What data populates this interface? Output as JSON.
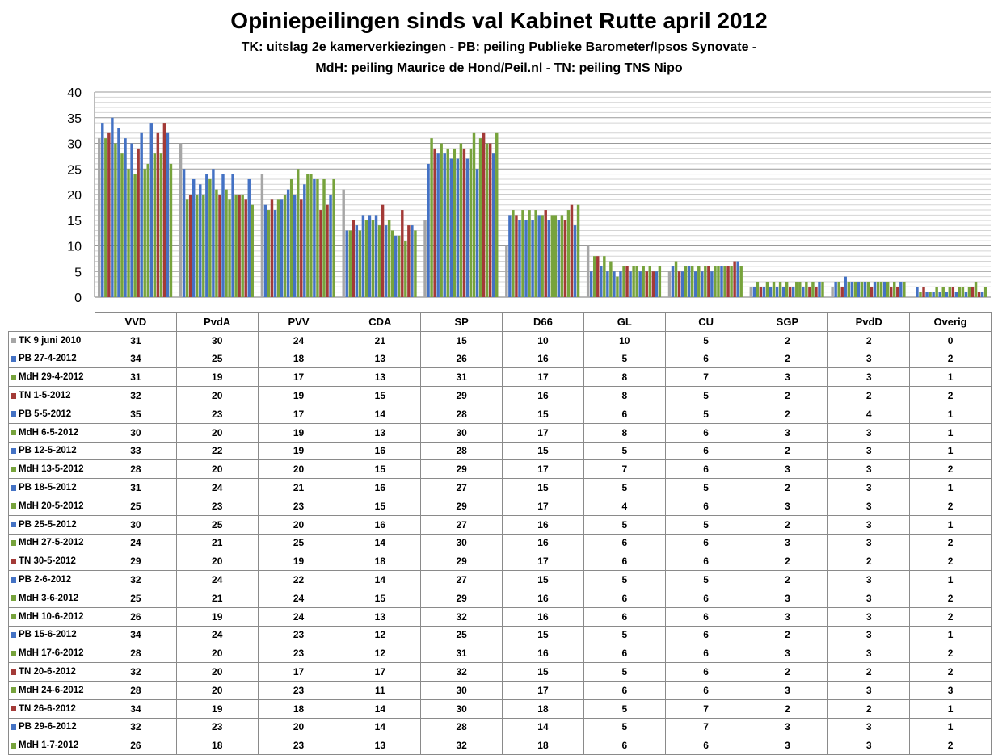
{
  "title": "Opiniepeilingen sinds val Kabinet Rutte april 2012",
  "subtitle_line1": "TK: uitslag 2e kamerverkiezingen - PB: peiling Publieke Barometer/Ipsos Synovate -",
  "subtitle_line2": "MdH: peiling Maurice de Hond/Peil.nl - TN: peiling TNS Nipo",
  "colors": {
    "TK": "#a6a6a6",
    "PB": "#4472c4",
    "MdH": "#77a33c",
    "TN": "#a33a37"
  },
  "chart_data": {
    "type": "bar",
    "categories": [
      "VVD",
      "PvdA",
      "PVV",
      "CDA",
      "SP",
      "D66",
      "GL",
      "CU",
      "SGP",
      "PvdD",
      "Overig"
    ],
    "ylim": [
      0,
      40
    ],
    "yticks": [
      "0",
      "5",
      "10",
      "15",
      "20",
      "25",
      "30",
      "35",
      "40"
    ],
    "grid": true,
    "legend": "data table below the chart",
    "series": [
      {
        "name": "TK 9 juni 2010",
        "group": "TK",
        "values": [
          31,
          30,
          24,
          21,
          15,
          10,
          10,
          5,
          2,
          2,
          0
        ]
      },
      {
        "name": "PB 27-4-2012",
        "group": "PB",
        "values": [
          34,
          25,
          18,
          13,
          26,
          16,
          5,
          6,
          2,
          3,
          2
        ]
      },
      {
        "name": "MdH 29-4-2012",
        "group": "MdH",
        "values": [
          31,
          19,
          17,
          13,
          31,
          17,
          8,
          7,
          3,
          3,
          1
        ]
      },
      {
        "name": "TN 1-5-2012",
        "group": "TN",
        "values": [
          32,
          20,
          19,
          15,
          29,
          16,
          8,
          5,
          2,
          2,
          2
        ]
      },
      {
        "name": "PB 5-5-2012",
        "group": "PB",
        "values": [
          35,
          23,
          17,
          14,
          28,
          15,
          6,
          5,
          2,
          4,
          1
        ]
      },
      {
        "name": "MdH 6-5-2012",
        "group": "MdH",
        "values": [
          30,
          20,
          19,
          13,
          30,
          17,
          8,
          6,
          3,
          3,
          1
        ]
      },
      {
        "name": "PB 12-5-2012",
        "group": "PB",
        "values": [
          33,
          22,
          19,
          16,
          28,
          15,
          5,
          6,
          2,
          3,
          1
        ]
      },
      {
        "name": "MdH 13-5-2012",
        "group": "MdH",
        "values": [
          28,
          20,
          20,
          15,
          29,
          17,
          7,
          6,
          3,
          3,
          2
        ]
      },
      {
        "name": "PB 18-5-2012",
        "group": "PB",
        "values": [
          31,
          24,
          21,
          16,
          27,
          15,
          5,
          5,
          2,
          3,
          1
        ]
      },
      {
        "name": "MdH 20-5-2012",
        "group": "MdH",
        "values": [
          25,
          23,
          23,
          15,
          29,
          17,
          4,
          6,
          3,
          3,
          2
        ]
      },
      {
        "name": "PB 25-5-2012",
        "group": "PB",
        "values": [
          30,
          25,
          20,
          16,
          27,
          16,
          5,
          5,
          2,
          3,
          1
        ]
      },
      {
        "name": "MdH 27-5-2012",
        "group": "MdH",
        "values": [
          24,
          21,
          25,
          14,
          30,
          16,
          6,
          6,
          3,
          3,
          2
        ]
      },
      {
        "name": "TN 30-5-2012",
        "group": "TN",
        "values": [
          29,
          20,
          19,
          18,
          29,
          17,
          6,
          6,
          2,
          2,
          2
        ]
      },
      {
        "name": "PB 2-6-2012",
        "group": "PB",
        "values": [
          32,
          24,
          22,
          14,
          27,
          15,
          5,
          5,
          2,
          3,
          1
        ]
      },
      {
        "name": "MdH 3-6-2012",
        "group": "MdH",
        "values": [
          25,
          21,
          24,
          15,
          29,
          16,
          6,
          6,
          3,
          3,
          2
        ]
      },
      {
        "name": "MdH 10-6-2012",
        "group": "MdH",
        "values": [
          26,
          19,
          24,
          13,
          32,
          16,
          6,
          6,
          3,
          3,
          2
        ]
      },
      {
        "name": "PB 15-6-2012",
        "group": "PB",
        "values": [
          34,
          24,
          23,
          12,
          25,
          15,
          5,
          6,
          2,
          3,
          1
        ]
      },
      {
        "name": "MdH 17-6-2012",
        "group": "MdH",
        "values": [
          28,
          20,
          23,
          12,
          31,
          16,
          6,
          6,
          3,
          3,
          2
        ]
      },
      {
        "name": "TN 20-6-2012",
        "group": "TN",
        "values": [
          32,
          20,
          17,
          17,
          32,
          15,
          5,
          6,
          2,
          2,
          2
        ]
      },
      {
        "name": "MdH 24-6-2012",
        "group": "MdH",
        "values": [
          28,
          20,
          23,
          11,
          30,
          17,
          6,
          6,
          3,
          3,
          3
        ]
      },
      {
        "name": "TN 26-6-2012",
        "group": "TN",
        "values": [
          34,
          19,
          18,
          14,
          30,
          18,
          5,
          7,
          2,
          2,
          1
        ]
      },
      {
        "name": "PB 29-6-2012",
        "group": "PB",
        "values": [
          32,
          23,
          20,
          14,
          28,
          14,
          5,
          7,
          3,
          3,
          1
        ]
      },
      {
        "name": "MdH 1-7-2012",
        "group": "MdH",
        "values": [
          26,
          18,
          23,
          13,
          32,
          18,
          6,
          6,
          3,
          3,
          2
        ]
      }
    ]
  }
}
